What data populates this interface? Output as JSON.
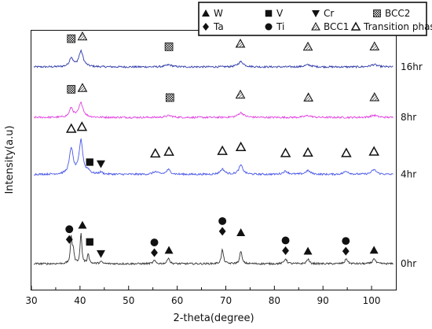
{
  "chart_data": {
    "type": "line",
    "title": "",
    "xlabel": "2-theta(degree)",
    "ylabel": "Intensity(a.u)",
    "xlim": [
      30,
      105
    ],
    "xticks": [
      30,
      40,
      50,
      60,
      70,
      80,
      90,
      100
    ],
    "yticks_shown": false,
    "grid": false,
    "legend_position": "top-right",
    "legend": [
      {
        "marker": "triangle-up",
        "label": "W"
      },
      {
        "marker": "square",
        "label": "V"
      },
      {
        "marker": "triangle-down",
        "label": "Cr"
      },
      {
        "marker": "checker-square",
        "label": "BCC2"
      },
      {
        "marker": "diamond",
        "label": "Ta"
      },
      {
        "marker": "circle",
        "label": "Ti"
      },
      {
        "marker": "hatched-triangle",
        "label": "BCC1"
      },
      {
        "marker": "open-triangle",
        "label": "Transition phase"
      }
    ],
    "series": [
      {
        "name": "16hr",
        "color": "#2e3aa8",
        "baseline": 0.86,
        "peaks": [
          {
            "x": 38.2,
            "h": 0.035,
            "w": 0.45
          },
          {
            "x": 40.2,
            "h": 0.06,
            "w": 0.55
          },
          {
            "x": 58.3,
            "h": 0.008,
            "w": 0.8
          },
          {
            "x": 73.1,
            "h": 0.02,
            "w": 0.7
          },
          {
            "x": 86.9,
            "h": 0.008,
            "w": 0.8
          },
          {
            "x": 100.5,
            "h": 0.009,
            "w": 0.8
          }
        ],
        "markers": [
          {
            "x": 38.2,
            "symbol": "checker-square",
            "row": 1
          },
          {
            "x": 40.5,
            "symbol": "hatched-triangle",
            "row": 1
          },
          {
            "x": 58.3,
            "symbol": "checker-square",
            "row": 1
          },
          {
            "x": 73.0,
            "symbol": "hatched-triangle",
            "row": 1
          },
          {
            "x": 86.9,
            "symbol": "hatched-triangle",
            "row": 1
          },
          {
            "x": 100.6,
            "symbol": "hatched-triangle",
            "row": 1
          }
        ]
      },
      {
        "name": "8hr",
        "color": "#e040e0",
        "baseline": 0.665,
        "peaks": [
          {
            "x": 38.2,
            "h": 0.035,
            "w": 0.45
          },
          {
            "x": 40.2,
            "h": 0.055,
            "w": 0.55
          },
          {
            "x": 58.3,
            "h": 0.007,
            "w": 0.8
          },
          {
            "x": 73.1,
            "h": 0.018,
            "w": 0.7
          },
          {
            "x": 86.9,
            "h": 0.007,
            "w": 0.8
          },
          {
            "x": 100.5,
            "h": 0.008,
            "w": 0.8
          }
        ],
        "markers": [
          {
            "x": 38.2,
            "symbol": "checker-square",
            "row": 1
          },
          {
            "x": 40.5,
            "symbol": "hatched-triangle",
            "row": 1
          },
          {
            "x": 58.5,
            "symbol": "checker-square",
            "row": 1
          },
          {
            "x": 73.0,
            "symbol": "hatched-triangle",
            "row": 1
          },
          {
            "x": 87.0,
            "symbol": "hatched-triangle",
            "row": 1
          },
          {
            "x": 100.6,
            "symbol": "hatched-triangle",
            "row": 1
          }
        ]
      },
      {
        "name": "4hr",
        "color": "#4a58e8",
        "baseline": 0.445,
        "peaks": [
          {
            "x": 38.2,
            "h": 0.1,
            "w": 0.45
          },
          {
            "x": 40.2,
            "h": 0.13,
            "w": 0.45
          },
          {
            "x": 41.7,
            "h": 0.012,
            "w": 0.4
          },
          {
            "x": 44.3,
            "h": 0.008,
            "w": 0.4
          },
          {
            "x": 55.5,
            "h": 0.01,
            "w": 0.6
          },
          {
            "x": 58.2,
            "h": 0.018,
            "w": 0.5
          },
          {
            "x": 69.3,
            "h": 0.02,
            "w": 0.55
          },
          {
            "x": 73.1,
            "h": 0.035,
            "w": 0.5
          },
          {
            "x": 82.3,
            "h": 0.012,
            "w": 0.6
          },
          {
            "x": 86.9,
            "h": 0.014,
            "w": 0.6
          },
          {
            "x": 94.8,
            "h": 0.012,
            "w": 0.6
          },
          {
            "x": 100.5,
            "h": 0.018,
            "w": 0.6
          }
        ],
        "markers": [
          {
            "x": 38.2,
            "symbol": "open-triangle",
            "row": 1
          },
          {
            "x": 40.4,
            "symbol": "open-triangle",
            "row": 1
          },
          {
            "x": 42.0,
            "symbol": "square",
            "row": 0
          },
          {
            "x": 44.3,
            "symbol": "triangle-down",
            "row": 0
          },
          {
            "x": 55.5,
            "symbol": "open-triangle",
            "row": 1
          },
          {
            "x": 58.3,
            "symbol": "open-triangle",
            "row": 1
          },
          {
            "x": 69.3,
            "symbol": "open-triangle",
            "row": 1
          },
          {
            "x": 73.1,
            "symbol": "open-triangle",
            "row": 1
          },
          {
            "x": 82.3,
            "symbol": "open-triangle",
            "row": 1
          },
          {
            "x": 86.9,
            "symbol": "open-triangle",
            "row": 1
          },
          {
            "x": 94.8,
            "symbol": "open-triangle",
            "row": 1
          },
          {
            "x": 100.5,
            "symbol": "open-triangle",
            "row": 1
          }
        ]
      },
      {
        "name": "0hr",
        "color": "#333333",
        "baseline": 0.1,
        "peaks": [
          {
            "x": 38.2,
            "h": 0.1,
            "w": 0.2
          },
          {
            "x": 38.6,
            "h": 0.05,
            "w": 0.2
          },
          {
            "x": 40.2,
            "h": 0.12,
            "w": 0.2
          },
          {
            "x": 41.7,
            "h": 0.04,
            "w": 0.2
          },
          {
            "x": 44.3,
            "h": 0.008,
            "w": 0.3
          },
          {
            "x": 55.3,
            "h": 0.012,
            "w": 0.3
          },
          {
            "x": 58.2,
            "h": 0.025,
            "w": 0.25
          },
          {
            "x": 69.3,
            "h": 0.055,
            "w": 0.25
          },
          {
            "x": 73.1,
            "h": 0.05,
            "w": 0.25
          },
          {
            "x": 82.3,
            "h": 0.02,
            "w": 0.3
          },
          {
            "x": 86.9,
            "h": 0.018,
            "w": 0.3
          },
          {
            "x": 94.8,
            "h": 0.02,
            "w": 0.3
          },
          {
            "x": 100.5,
            "h": 0.022,
            "w": 0.3
          }
        ],
        "markers": [
          {
            "x": 37.8,
            "symbol": "circle",
            "row": 2
          },
          {
            "x": 37.8,
            "symbol": "diamond",
            "row": 1
          },
          {
            "x": 40.5,
            "symbol": "triangle-up",
            "row": 2
          },
          {
            "x": 42.0,
            "symbol": "square",
            "row": 1
          },
          {
            "x": 44.3,
            "symbol": "triangle-down",
            "row": 0
          },
          {
            "x": 55.3,
            "symbol": "circle",
            "row": 1
          },
          {
            "x": 55.3,
            "symbol": "diamond",
            "row": 0
          },
          {
            "x": 58.3,
            "symbol": "triangle-up",
            "row": 0
          },
          {
            "x": 69.3,
            "symbol": "circle",
            "row": 2
          },
          {
            "x": 69.3,
            "symbol": "diamond",
            "row": 1
          },
          {
            "x": 73.1,
            "symbol": "triangle-up",
            "row": 1
          },
          {
            "x": 82.3,
            "symbol": "circle",
            "row": 1
          },
          {
            "x": 82.3,
            "symbol": "diamond",
            "row": 0
          },
          {
            "x": 86.9,
            "symbol": "triangle-up",
            "row": 0
          },
          {
            "x": 94.7,
            "symbol": "circle",
            "row": 1
          },
          {
            "x": 94.7,
            "symbol": "diamond",
            "row": 0
          },
          {
            "x": 100.5,
            "symbol": "triangle-up",
            "row": 0
          }
        ]
      }
    ]
  }
}
